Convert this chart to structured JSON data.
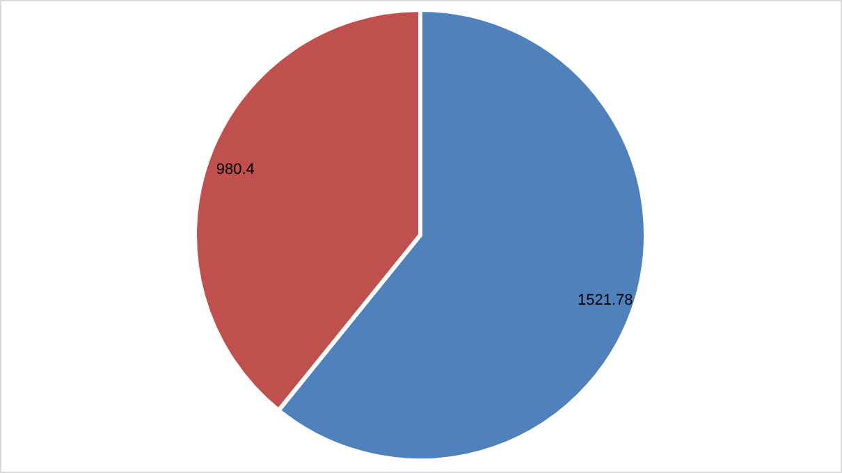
{
  "chart_data": {
    "type": "pie",
    "categories": [
      null,
      null
    ],
    "values": [
      1521.78,
      980.4
    ],
    "colors": [
      "#4f81bd",
      "#c0504d"
    ],
    "data_labels": true
  }
}
